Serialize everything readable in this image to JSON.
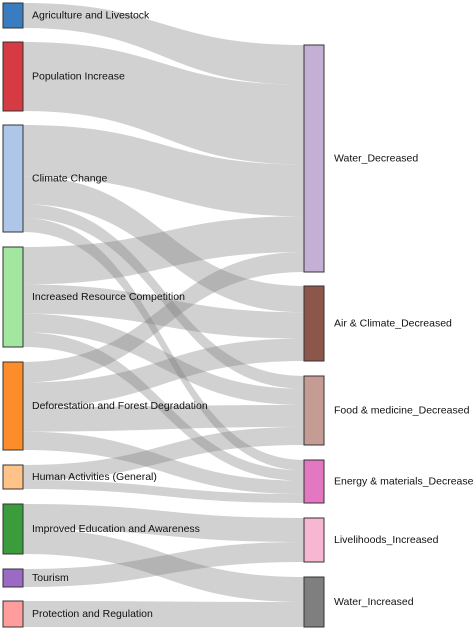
{
  "diagram": {
    "type": "sankey",
    "sources": [
      {
        "id": "agri",
        "label": "Agriculture and Livestock",
        "color": "#3a7cc0"
      },
      {
        "id": "pop",
        "label": "Population Increase",
        "color": "#d63a43"
      },
      {
        "id": "clim",
        "label": "Climate Change",
        "color": "#aec7e8"
      },
      {
        "id": "comp",
        "label": "Increased Resource Competition",
        "color": "#a3e6a0"
      },
      {
        "id": "defor",
        "label": "Deforestation and Forest Degradation",
        "color": "#fd8d2a"
      },
      {
        "id": "human",
        "label": "Human Activities (General)",
        "color": "#ffc38a"
      },
      {
        "id": "edu",
        "label": "Improved Education and Awareness",
        "color": "#3a9c3a"
      },
      {
        "id": "tour",
        "label": "Tourism",
        "color": "#9b6ac4"
      },
      {
        "id": "prot",
        "label": "Protection and Regulation",
        "color": "#ff9d9d"
      }
    ],
    "targets": [
      {
        "id": "water_dec",
        "label": "Water_Decreased",
        "color": "#c5b0d5"
      },
      {
        "id": "air_dec",
        "label": "Air & Climate_Decreased",
        "color": "#8c564b"
      },
      {
        "id": "food_dec",
        "label": "Food & medicine_Decreased",
        "color": "#c49c94"
      },
      {
        "id": "energy_dec",
        "label": "Energy & materials_Decreased",
        "color": "#e377c2"
      },
      {
        "id": "liveli_inc",
        "label": "Livelihoods_Increased",
        "color": "#f7b6d2"
      },
      {
        "id": "water_inc",
        "label": "Water_Increased",
        "color": "#7f7f7f"
      }
    ],
    "links": [
      {
        "source": "agri",
        "target": "water_dec",
        "value": 1
      },
      {
        "source": "pop",
        "target": "water_dec",
        "value": 2
      },
      {
        "source": "clim",
        "target": "water_dec",
        "value": 1.3
      },
      {
        "source": "clim",
        "target": "air_dec",
        "value": 0.7
      },
      {
        "source": "clim",
        "target": "food_dec",
        "value": 0.35
      },
      {
        "source": "clim",
        "target": "energy_dec",
        "value": 0.35
      },
      {
        "source": "comp",
        "target": "water_dec",
        "value": 0.9
      },
      {
        "source": "comp",
        "target": "air_dec",
        "value": 0.7
      },
      {
        "source": "comp",
        "target": "food_dec",
        "value": 0.45
      },
      {
        "source": "comp",
        "target": "energy_dec",
        "value": 0.35
      },
      {
        "source": "defor",
        "target": "water_dec",
        "value": 0.5
      },
      {
        "source": "defor",
        "target": "air_dec",
        "value": 0.6
      },
      {
        "source": "defor",
        "target": "food_dec",
        "value": 0.6
      },
      {
        "source": "defor",
        "target": "energy_dec",
        "value": 0.45
      },
      {
        "source": "human",
        "target": "food_dec",
        "value": 0.5
      },
      {
        "source": "human",
        "target": "energy_dec",
        "value": 0.3
      },
      {
        "source": "edu",
        "target": "liveli_inc",
        "value": 0.6
      },
      {
        "source": "edu",
        "target": "water_inc",
        "value": 0.6
      },
      {
        "source": "tour",
        "target": "liveli_inc",
        "value": 0.5
      },
      {
        "source": "prot",
        "target": "water_inc",
        "value": 0.6
      }
    ]
  }
}
